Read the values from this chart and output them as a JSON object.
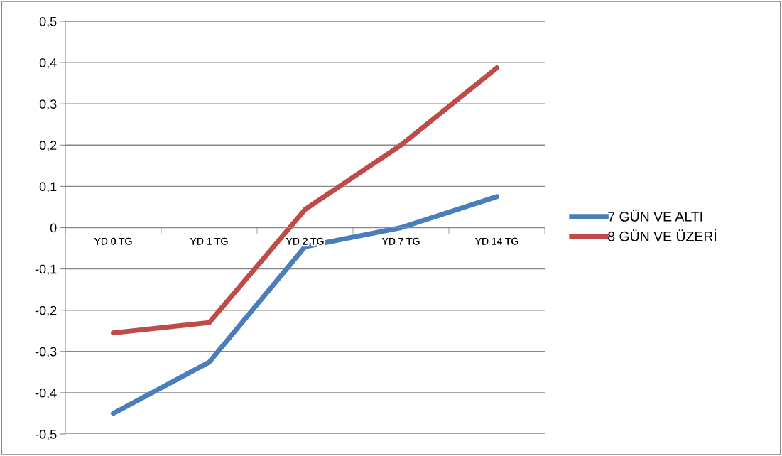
{
  "chart_data": {
    "type": "line",
    "categories": [
      "YD 0 TG",
      "YD 1 TG",
      "YD 2 TG",
      "YD 7 TG",
      "YD 14 TG"
    ],
    "series": [
      {
        "name": "7 GÜN VE ALTI",
        "color": "#4a7ebb",
        "values": [
          -0.45,
          -0.326,
          -0.046,
          0.0,
          0.075
        ]
      },
      {
        "name": "8 GÜN VE ÜZERİ",
        "color": "#be4b48",
        "values": [
          -0.255,
          -0.23,
          0.044,
          0.2,
          0.387
        ]
      }
    ],
    "ylim": [
      -0.5,
      0.5
    ],
    "yticks": [
      {
        "value": -0.5,
        "label": "-0,5"
      },
      {
        "value": -0.4,
        "label": "-0,4"
      },
      {
        "value": -0.3,
        "label": "-0,3"
      },
      {
        "value": -0.2,
        "label": "-0,2"
      },
      {
        "value": -0.1,
        "label": "-0,1"
      },
      {
        "value": 0,
        "label": "0"
      },
      {
        "value": 0.1,
        "label": "0,1"
      },
      {
        "value": 0.2,
        "label": "0,2"
      },
      {
        "value": 0.3,
        "label": "0,3"
      },
      {
        "value": 0.4,
        "label": "0,4"
      },
      {
        "value": 0.5,
        "label": "0,5"
      }
    ],
    "grid": "y",
    "legend": "right",
    "marker": "none",
    "line_style": "solid"
  }
}
